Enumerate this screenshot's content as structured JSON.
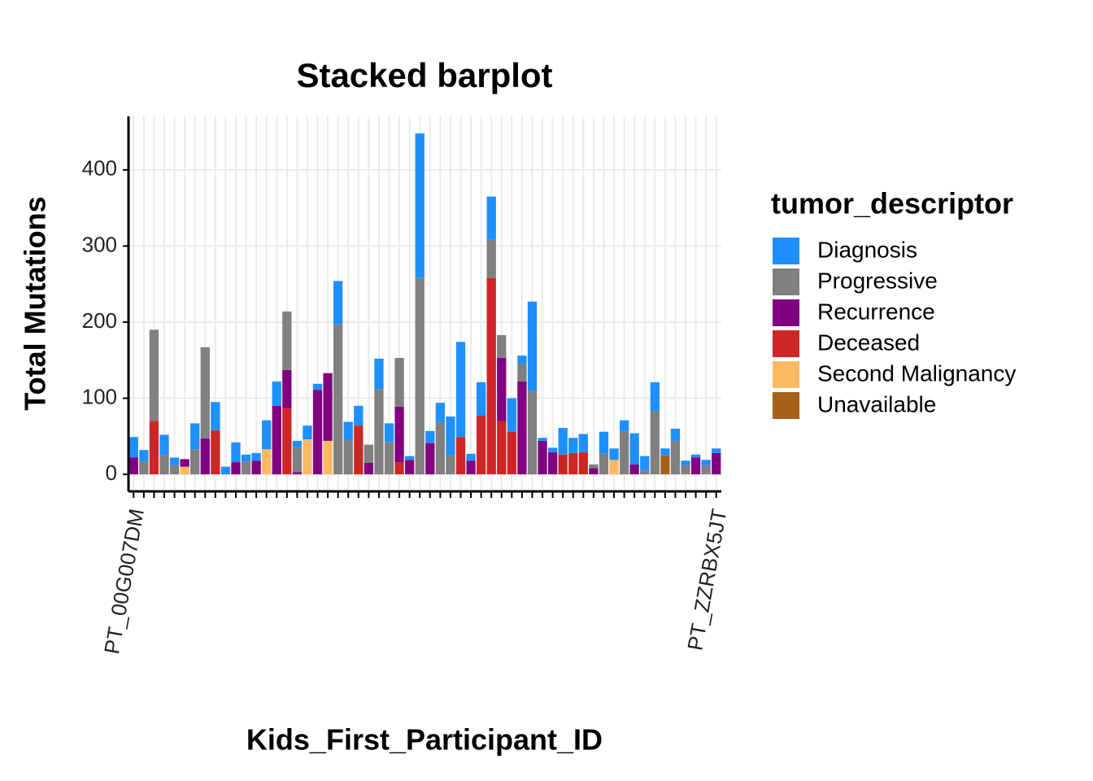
{
  "chart_data": {
    "type": "stacked_bar",
    "title": "Stacked barplot",
    "x_label": "Kids_First_Participant_ID",
    "y_label": "Total Mutations",
    "legend_title": "tumor_descriptor",
    "legend_position": "right",
    "grid": true,
    "categories": [
      "PT_00G007DM",
      null,
      null,
      null,
      null,
      null,
      null,
      null,
      null,
      null,
      null,
      null,
      null,
      null,
      null,
      null,
      null,
      null,
      null,
      null,
      null,
      null,
      null,
      null,
      null,
      null,
      null,
      null,
      null,
      null,
      null,
      null,
      null,
      null,
      null,
      null,
      null,
      null,
      null,
      null,
      null,
      null,
      null,
      null,
      null,
      null,
      null,
      null,
      null,
      null,
      null,
      null,
      null,
      null,
      null,
      null,
      null,
      "PT_ZZRBX5JT"
    ],
    "ylim": [
      -22.4,
      470.4
    ],
    "yticks": [
      0,
      100,
      200,
      300,
      400
    ],
    "series": [
      {
        "name": "Diagnosis",
        "color": "#1e90ff",
        "values": [
          27,
          15,
          null,
          27,
          10,
          null,
          34,
          null,
          37,
          10,
          26,
          9,
          10,
          38,
          32,
          null,
          8,
          18,
          8,
          null,
          57,
          24,
          26,
          null,
          40,
          25,
          null,
          5,
          190,
          16,
          26,
          51,
          125,
          9,
          44,
          57,
          null,
          44,
          11,
          117,
          4,
          6,
          35,
          20,
          24,
          null,
          29,
          15,
          15,
          41,
          19,
          38,
          9,
          16,
          6,
          4,
          7,
          6
        ]
      },
      {
        "name": "Progressive",
        "color": "#808080",
        "values": [
          null,
          17,
          120,
          25,
          12,
          null,
          33,
          120,
          null,
          null,
          null,
          17,
          null,
          null,
          null,
          77,
          33,
          null,
          null,
          null,
          197,
          45,
          null,
          24,
          112,
          42,
          64,
          null,
          258,
          null,
          68,
          25,
          null,
          null,
          null,
          50,
          30,
          null,
          23,
          110,
          null,
          null,
          null,
          null,
          null,
          5,
          27,
          null,
          56,
          null,
          5,
          83,
          null,
          44,
          12,
          null,
          12,
          null
        ]
      },
      {
        "name": "Recurrence",
        "color": "#800080",
        "values": [
          22,
          null,
          null,
          null,
          null,
          10,
          null,
          47,
          null,
          null,
          16,
          null,
          18,
          null,
          90,
          50,
          3,
          null,
          111,
          89,
          null,
          null,
          null,
          15,
          null,
          null,
          73,
          19,
          null,
          41,
          null,
          null,
          null,
          18,
          null,
          null,
          83,
          null,
          122,
          null,
          44,
          29,
          null,
          null,
          null,
          8,
          null,
          null,
          null,
          13,
          null,
          null,
          null,
          null,
          null,
          22,
          null,
          28
        ]
      },
      {
        "name": "Deceased",
        "color": "#cd2626",
        "values": [
          null,
          null,
          70,
          null,
          null,
          null,
          null,
          null,
          58,
          null,
          null,
          null,
          null,
          null,
          null,
          87,
          null,
          null,
          null,
          null,
          null,
          null,
          64,
          null,
          null,
          null,
          16,
          null,
          null,
          null,
          null,
          null,
          49,
          null,
          77,
          258,
          70,
          56,
          null,
          null,
          null,
          null,
          26,
          28,
          29,
          null,
          null,
          null,
          null,
          null,
          null,
          null,
          null,
          null,
          null,
          null,
          null,
          null
        ]
      },
      {
        "name": "Second Malignancy",
        "color": "#fdb863",
        "values": [
          null,
          null,
          null,
          null,
          null,
          10,
          null,
          null,
          null,
          null,
          null,
          null,
          null,
          33,
          null,
          null,
          null,
          46,
          null,
          44,
          null,
          null,
          null,
          null,
          null,
          null,
          null,
          null,
          null,
          null,
          null,
          null,
          null,
          null,
          null,
          null,
          null,
          null,
          null,
          null,
          null,
          null,
          null,
          null,
          null,
          null,
          null,
          19,
          null,
          null,
          null,
          null,
          null,
          null,
          null,
          null,
          null,
          null
        ]
      },
      {
        "name": "Unavailable",
        "color": "#a6611a",
        "values": [
          null,
          null,
          null,
          null,
          null,
          null,
          null,
          null,
          null,
          null,
          null,
          null,
          null,
          null,
          null,
          null,
          null,
          null,
          null,
          null,
          null,
          null,
          null,
          null,
          null,
          null,
          null,
          null,
          null,
          null,
          null,
          null,
          null,
          null,
          null,
          null,
          null,
          null,
          null,
          null,
          null,
          null,
          null,
          null,
          null,
          null,
          null,
          null,
          null,
          null,
          null,
          null,
          25,
          null,
          null,
          null,
          null,
          null
        ]
      }
    ]
  }
}
